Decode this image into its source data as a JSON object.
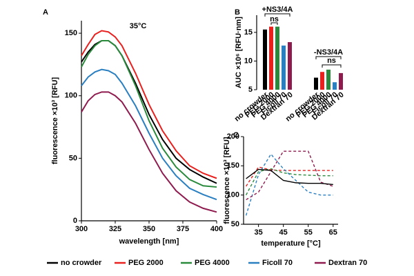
{
  "chart_data": [
    {
      "type": "line",
      "panel_label": "A",
      "annotation": "35°C",
      "x_label": "wavelength [nm]",
      "y_label": "fluorescence ×10³ [RFU]",
      "x": [
        300,
        305,
        310,
        315,
        320,
        325,
        330,
        340,
        350,
        360,
        370,
        380,
        390,
        400
      ],
      "xlim": [
        300,
        400
      ],
      "xticks": [
        300,
        325,
        350,
        375,
        400
      ],
      "ylim": [
        0,
        160
      ],
      "yticks": [
        0,
        50,
        100,
        150
      ],
      "series": [
        {
          "name": "no crowder",
          "color": "#000000",
          "values": [
            127,
            135,
            141,
            144,
            144,
            140,
            132,
            110,
            85,
            65,
            50,
            41,
            35,
            30
          ]
        },
        {
          "name": "PEG 2000",
          "color": "#e8201e",
          "values": [
            132,
            141,
            149,
            152,
            151,
            147,
            140,
            118,
            93,
            72,
            56,
            44,
            38,
            34
          ]
        },
        {
          "name": "PEG 4000",
          "color": "#2a8a3c",
          "values": [
            123,
            133,
            140,
            144,
            144,
            140,
            132,
            108,
            80,
            58,
            43,
            33,
            28,
            27
          ]
        },
        {
          "name": "Ficoll 70",
          "color": "#2a7fc1",
          "values": [
            108,
            115,
            119,
            121,
            120,
            117,
            110,
            92,
            70,
            50,
            36,
            26,
            21,
            17
          ]
        },
        {
          "name": "Dextran 70",
          "color": "#8e1a4e",
          "values": [
            87,
            96,
            101,
            103,
            103,
            100,
            95,
            78,
            57,
            38,
            24,
            15,
            10,
            7
          ]
        }
      ]
    },
    {
      "type": "bar",
      "panel_label": "B",
      "y_label": "AUC ×10⁶ [RFU·nm]",
      "group_labels": [
        "+NS3/4A",
        "-NS3/4A"
      ],
      "significance": [
        "ns",
        "ns"
      ],
      "categories": [
        "no crowder",
        "PEG 2000",
        "PEG 4000",
        "Ficoll 70",
        "Dextran 70",
        "no crowder",
        "PEG 2000",
        "PEG 4000",
        "Ficoll 70",
        "Dextran 70"
      ],
      "values": [
        15.5,
        16.0,
        16.0,
        12.7,
        13.3,
        7.1,
        8.1,
        8.5,
        6.3,
        7.9
      ],
      "colors": [
        "#000000",
        "#e8201e",
        "#2a8a3c",
        "#2a7fc1",
        "#8e1a4e",
        "#000000",
        "#e8201e",
        "#2a8a3c",
        "#2a7fc1",
        "#8e1a4e"
      ],
      "ylim": [
        5,
        18
      ],
      "yticks": [
        5,
        10,
        15
      ]
    },
    {
      "type": "line",
      "panel_label": "C",
      "x_label": "temperature [°C]",
      "y_label": "fluorescence ×10³ [RFU]",
      "x": [
        30,
        35,
        40,
        45,
        50,
        55,
        60,
        65
      ],
      "xlim": [
        29,
        67
      ],
      "xticks": [
        35,
        45,
        55,
        65
      ],
      "ylim": [
        50,
        200
      ],
      "yticks": [
        50,
        100,
        150,
        200
      ],
      "series": [
        {
          "color": "#e8201e",
          "dashed": true,
          "values": [
            115,
            148,
            143,
            142,
            142,
            142,
            142,
            142
          ]
        },
        {
          "color": "#2a8a3c",
          "dashed": true,
          "values": [
            100,
            140,
            145,
            138,
            135,
            134,
            133,
            133
          ]
        },
        {
          "color": "#2a7fc1",
          "dashed": true,
          "values": [
            65,
            135,
            170,
            145,
            125,
            105,
            100,
            100
          ]
        },
        {
          "color": "#8e1a4e",
          "dashed": true,
          "values": [
            92,
            105,
            140,
            175,
            175,
            175,
            122,
            115
          ]
        },
        {
          "color": "#000000",
          "dashed": false,
          "values": [
            128,
            144,
            142,
            125,
            121,
            120,
            120,
            118
          ]
        }
      ]
    }
  ]
}
